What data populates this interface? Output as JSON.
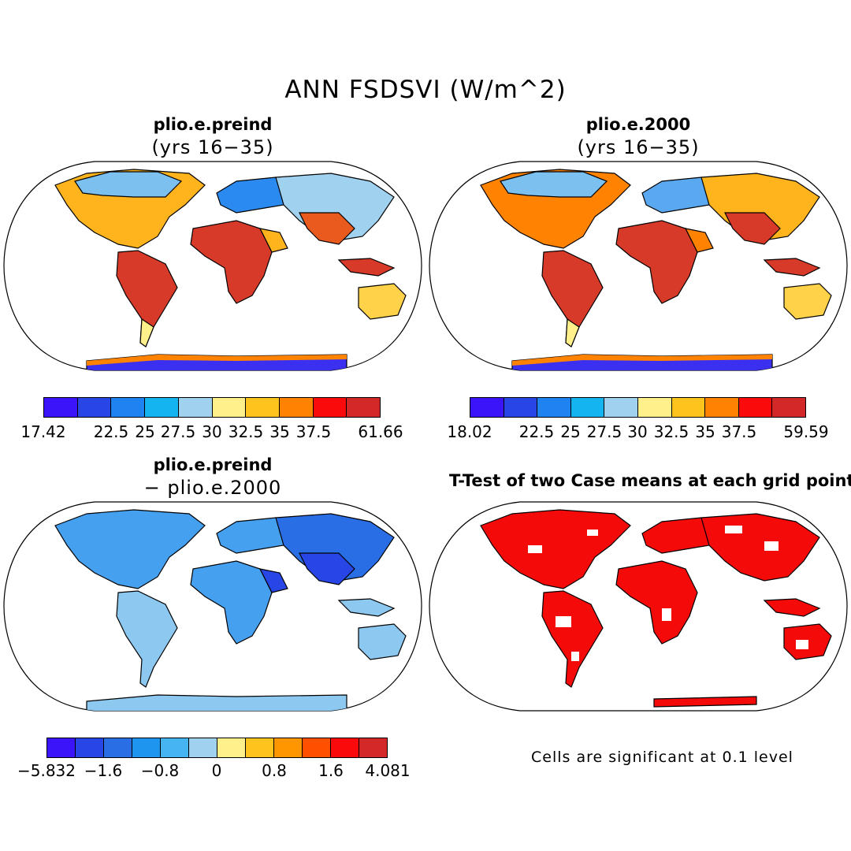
{
  "title": "ANN FSDSVI (W/m^2)",
  "panels": {
    "top_left": {
      "title": "plio.e.preind",
      "subtitle": "(yrs 16−35)"
    },
    "top_right": {
      "title": "plio.e.2000",
      "subtitle": "(yrs 16−35)"
    },
    "bottom_left": {
      "title": "plio.e.preind",
      "subtitle": "− plio.e.2000"
    },
    "bottom_right": {
      "title": "T-Test of two Case means at each grid point",
      "note": "Cells are significant at 0.1 level"
    }
  },
  "colorbars": {
    "top_left": {
      "colors": [
        "#3c14fa",
        "#2846e6",
        "#1e82f0",
        "#14b4f0",
        "#a0d2f0",
        "#fff08c",
        "#ffc31e",
        "#ff8200",
        "#fa0a0a",
        "#d22828"
      ],
      "labels": [
        "17.42",
        "22.5",
        "25",
        "27.5",
        "30",
        "32.5",
        "35",
        "37.5",
        "61.66"
      ]
    },
    "top_right": {
      "colors": [
        "#3c14fa",
        "#2846e6",
        "#1e82f0",
        "#14b4f0",
        "#a0d2f0",
        "#fff08c",
        "#ffc31e",
        "#ff8200",
        "#fa0a0a",
        "#d22828"
      ],
      "labels": [
        "18.02",
        "22.5",
        "25",
        "27.5",
        "30",
        "32.5",
        "35",
        "37.5",
        "59.59"
      ]
    },
    "bottom_left": {
      "colors": [
        "#3c14fa",
        "#2846e6",
        "#2a6ee6",
        "#1e96f0",
        "#46b4f0",
        "#a0d2f0",
        "#fff08c",
        "#ffc31e",
        "#ff9600",
        "#ff5000",
        "#fa0a0a",
        "#d22828"
      ],
      "labels": [
        "−5.832",
        "−1.6",
        "−0.8",
        "0",
        "0.8",
        "1.6",
        "4.081"
      ]
    }
  },
  "map_colors": {
    "continent_warm": "#d83a2a",
    "continent_mid": "#ffb41e",
    "continent_cool": "#a0d2f0",
    "continent_blue": "#2a8af0",
    "antarctica": "#3c30f0",
    "diff_light": "#8cc8f0",
    "diff_mid": "#46a0f0",
    "diff_dark": "#2846e6",
    "ttest_red": "#f50a0a"
  }
}
